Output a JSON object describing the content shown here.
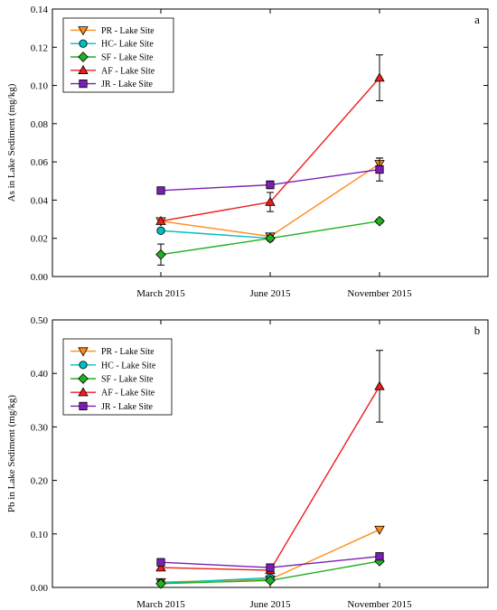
{
  "chart_data": [
    {
      "type": "line",
      "panel_label": "a",
      "title": "",
      "xlabel": "",
      "ylabel": "As in Lake Sediment (mg/kg)",
      "categories": [
        "March 2015",
        "June 2015",
        "November 2015"
      ],
      "ylim": [
        0,
        0.14
      ],
      "yticks": [
        "0.00",
        "0.02",
        "0.04",
        "0.06",
        "0.08",
        "0.10",
        "0.12",
        "0.14"
      ],
      "legend_position": "top-left",
      "grid": false,
      "series": [
        {
          "name": "PR - Lake Site",
          "color": "#ff8c1a",
          "marker": "triangle-down",
          "values": [
            0.029,
            0.021,
            0.059
          ],
          "errors": [
            0,
            0,
            0.003
          ]
        },
        {
          "name": "HC- Lake Site",
          "color": "#00c0c0",
          "marker": "circle",
          "values": [
            0.024,
            0.02,
            null
          ],
          "errors": [
            0.001,
            0,
            0
          ]
        },
        {
          "name": "SF - Lake Site",
          "color": "#20b020",
          "marker": "diamond",
          "values": [
            0.0115,
            0.02,
            0.029
          ],
          "errors": [
            0.0055,
            0,
            0.001
          ]
        },
        {
          "name": "AF - Lake Site",
          "color": "#ee1c1c",
          "marker": "triangle-up",
          "values": [
            0.029,
            0.039,
            0.104
          ],
          "errors": [
            0,
            0.005,
            0.012
          ]
        },
        {
          "name": "JR - Lake Site",
          "color": "#7a1fb5",
          "marker": "square",
          "values": [
            0.045,
            0.048,
            0.056
          ],
          "errors": [
            0,
            0.002,
            0.006
          ]
        }
      ]
    },
    {
      "type": "line",
      "panel_label": "b",
      "title": "",
      "xlabel": "",
      "ylabel": "Pb in Lake Sediment (mg/kg)",
      "categories": [
        "March 2015",
        "June 2015",
        "November 2015"
      ],
      "ylim": [
        0,
        0.5
      ],
      "yticks": [
        "0.00",
        "0.10",
        "0.20",
        "0.30",
        "0.40",
        "0.50"
      ],
      "legend_position": "top-left",
      "grid": false,
      "series": [
        {
          "name": "PR - Lake Site",
          "color": "#ff8c1a",
          "marker": "triangle-down",
          "values": [
            0.01,
            0.015,
            0.108
          ],
          "errors": [
            0,
            0,
            0
          ]
        },
        {
          "name": "HC - Lake Site",
          "color": "#00c0c0",
          "marker": "circle",
          "values": [
            0.008,
            0.018,
            null
          ],
          "errors": [
            0,
            0,
            0
          ]
        },
        {
          "name": "SF - Lake Site",
          "color": "#20b020",
          "marker": "diamond",
          "values": [
            0.007,
            0.013,
            0.049
          ],
          "errors": [
            0,
            0,
            0
          ]
        },
        {
          "name": "AF - Lake Site",
          "color": "#ee1c1c",
          "marker": "triangle-up",
          "values": [
            0.037,
            0.032,
            0.376
          ],
          "errors": [
            0,
            0,
            0.067
          ]
        },
        {
          "name": "JR - Lake Site",
          "color": "#7a1fb5",
          "marker": "square",
          "values": [
            0.047,
            0.037,
            0.058
          ],
          "errors": [
            0,
            0,
            0
          ]
        }
      ]
    }
  ]
}
